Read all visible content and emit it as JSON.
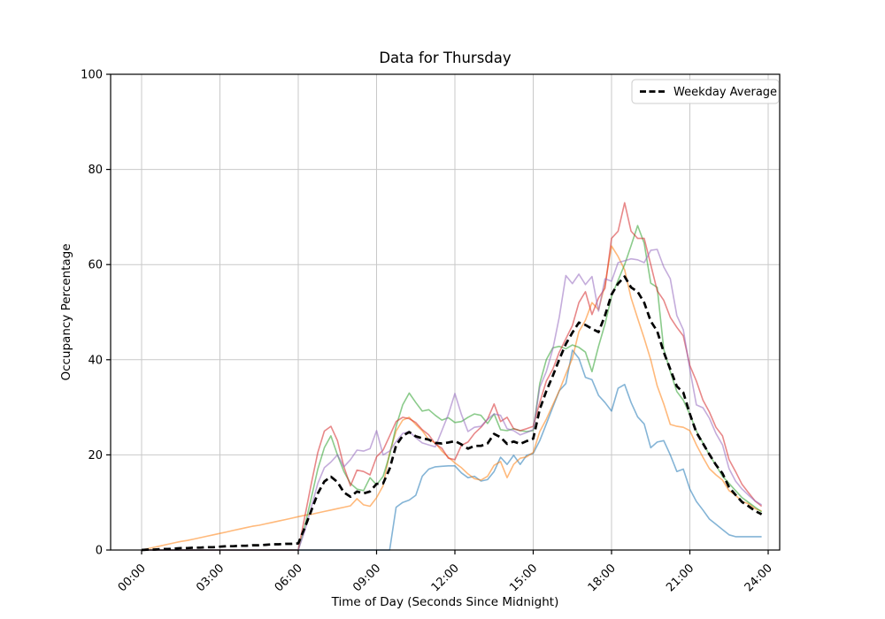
{
  "title": "Data for Thursday",
  "chart_data": {
    "type": "line",
    "title": "Data for Thursday",
    "xlabel": "Time of Day (Seconds Since Midnight)",
    "ylabel": "Occupancy Percentage",
    "xlim_hours": [
      0,
      24
    ],
    "ylim": [
      0,
      100
    ],
    "grid": true,
    "x_tick_hours": [
      0,
      3,
      6,
      9,
      12,
      15,
      18,
      21,
      24
    ],
    "x_tick_labels": [
      "00:00",
      "03:00",
      "06:00",
      "09:00",
      "12:00",
      "15:00",
      "18:00",
      "21:00",
      "24:00"
    ],
    "y_ticks": [
      0,
      20,
      40,
      60,
      80,
      100
    ],
    "x_start_hour": 0,
    "x_step_hours": 0.25,
    "legend": {
      "position": "upper right",
      "entries": [
        {
          "label": "Weekday Average",
          "style": "dashed",
          "color": "#000000"
        }
      ]
    },
    "series": [
      {
        "name": "weekday-1-blue",
        "color": "#1f77b4",
        "alpha": 0.55,
        "width": 1.6,
        "dashed": false,
        "values": [
          0,
          0,
          0,
          0,
          0,
          0,
          0,
          0,
          0,
          0,
          0,
          0,
          0,
          0,
          0,
          0,
          0,
          0,
          0,
          0,
          0,
          0,
          0,
          0,
          0,
          0,
          0,
          0,
          0,
          0,
          0,
          0,
          0,
          0,
          0,
          0,
          0,
          0,
          0,
          9,
          10,
          10.5,
          11.5,
          15.5,
          17,
          17.5,
          17.6,
          17.7,
          17.7,
          16.2,
          15.2,
          15.5,
          14.5,
          14.8,
          16.5,
          19.5,
          18,
          19.9,
          18,
          19.9,
          20.3,
          23,
          26.5,
          30,
          33.5,
          35,
          42,
          40.3,
          36.3,
          35.8,
          32.5,
          31,
          29.2,
          34,
          34.8,
          31,
          28,
          26.5,
          21.5,
          22.7,
          23,
          20,
          16.5,
          17,
          12.8,
          10.2,
          8.4,
          6.5,
          5.4,
          4.3,
          3.2,
          2.8,
          2.8,
          2.8,
          2.8,
          2.8
        ]
      },
      {
        "name": "weekday-2-orange",
        "color": "#ff7f0e",
        "alpha": 0.55,
        "width": 1.6,
        "dashed": false,
        "values": [
          0,
          0.3,
          0.6,
          0.9,
          1.2,
          1.5,
          1.8,
          2,
          2.3,
          2.6,
          2.9,
          3.2,
          3.5,
          3.8,
          4.1,
          4.4,
          4.7,
          5,
          5.2,
          5.5,
          5.8,
          6.1,
          6.4,
          6.7,
          7,
          7.3,
          7.5,
          7.8,
          8.1,
          8.4,
          8.7,
          9,
          9.3,
          10.8,
          9.5,
          9.2,
          11,
          13.5,
          20.5,
          25,
          27.3,
          27.9,
          26.4,
          25.1,
          23.2,
          22.5,
          20.8,
          19.5,
          18.3,
          17.3,
          16,
          15,
          14.7,
          15.5,
          17.8,
          18.6,
          15.2,
          18,
          19.3,
          19.6,
          20.5,
          24.9,
          27.5,
          30.5,
          33.5,
          37,
          40.3,
          45.9,
          48.3,
          52,
          50.5,
          55.8,
          63.9,
          61.7,
          58.9,
          53,
          48.7,
          44.5,
          40,
          34.5,
          30.7,
          26.4,
          26,
          25.8,
          25.1,
          22.1,
          19.5,
          17.1,
          15.8,
          14.7,
          12.5,
          11.5,
          10.2,
          9.7,
          8.7,
          8.2
        ]
      },
      {
        "name": "weekday-3-green",
        "color": "#2ca02c",
        "alpha": 0.55,
        "width": 1.6,
        "dashed": false,
        "values": [
          0,
          0,
          0,
          0,
          0,
          0,
          0,
          0,
          0,
          0,
          0,
          0,
          0,
          0,
          0,
          0,
          0,
          0,
          0,
          0,
          0,
          0,
          0,
          0,
          0,
          5,
          11,
          17,
          21.5,
          24,
          20,
          16.5,
          14,
          12.8,
          12.5,
          15.2,
          13.7,
          15.5,
          20,
          26,
          30.5,
          33,
          31,
          29.2,
          29.5,
          28.3,
          27.3,
          27.8,
          26.8,
          27,
          27.9,
          28.6,
          28.3,
          26.6,
          28.6,
          25.3,
          25.1,
          25.5,
          25.1,
          24.9,
          25.1,
          35,
          40,
          42.5,
          42.8,
          42.3,
          43.1,
          42.6,
          41.6,
          37.5,
          42.8,
          47.5,
          53.3,
          56.7,
          60,
          64,
          68.2,
          64.5,
          56.1,
          55.2,
          42.2,
          37.5,
          33.3,
          31.5,
          28.5,
          25,
          22.5,
          20,
          17.8,
          15.5,
          14,
          12.5,
          11,
          10,
          9,
          8
        ]
      },
      {
        "name": "weekday-4-red",
        "color": "#d62728",
        "alpha": 0.55,
        "width": 1.6,
        "dashed": false,
        "values": [
          0,
          0,
          0,
          0,
          0,
          0,
          0,
          0,
          0,
          0,
          0,
          0,
          0,
          0,
          0,
          0,
          0,
          0,
          0,
          0,
          0,
          0,
          0,
          0,
          0,
          7,
          14,
          20.5,
          25,
          26,
          23,
          17.5,
          13.5,
          16.8,
          16.5,
          15.8,
          19.6,
          21,
          24,
          27,
          27.9,
          27.6,
          26.8,
          25.3,
          24.2,
          22.3,
          21.4,
          19.3,
          19,
          22,
          22.7,
          24.5,
          25.8,
          27.5,
          30.7,
          27,
          27.9,
          25.5,
          25.1,
          25.5,
          26,
          31,
          35.5,
          38,
          41.6,
          44.4,
          47.2,
          52,
          54.3,
          49.5,
          53,
          55,
          65.5,
          67,
          73,
          67,
          65.5,
          65.5,
          60,
          54.5,
          52.5,
          48.9,
          46.8,
          45,
          38.8,
          35.5,
          31.5,
          29,
          25.8,
          24,
          19,
          16.5,
          13.8,
          12,
          10.3,
          9.2
        ]
      },
      {
        "name": "weekday-5-purple",
        "color": "#9467bd",
        "alpha": 0.55,
        "width": 1.6,
        "dashed": false,
        "values": [
          0,
          0,
          0,
          0,
          0,
          0,
          0,
          0,
          0,
          0,
          0,
          0,
          0,
          0,
          0,
          0,
          0,
          0,
          0,
          0,
          0,
          0,
          0,
          0,
          0,
          4,
          9,
          14,
          17.3,
          18.5,
          20,
          17.5,
          19,
          21,
          20.8,
          21.3,
          25.1,
          20,
          20.8,
          22.8,
          24.5,
          24.9,
          23.6,
          22.5,
          22.1,
          21.7,
          25.1,
          28.5,
          32.9,
          28.5,
          24.9,
          25.8,
          26,
          27.5,
          28.6,
          28.3,
          25.5,
          25.1,
          24.2,
          24.7,
          25.3,
          34.2,
          37.5,
          42.2,
          49,
          57.7,
          56,
          58,
          55.8,
          57.5,
          50.2,
          57,
          56.5,
          60.4,
          60.8,
          61.2,
          61,
          60.4,
          63,
          63.2,
          59.5,
          57,
          49.3,
          46.3,
          38,
          30.5,
          29.9,
          27.7,
          24.5,
          22.1,
          17.1,
          14.5,
          12.8,
          11.5,
          10.3,
          9.5
        ]
      },
      {
        "name": "Weekday Average",
        "color": "#000000",
        "alpha": 1,
        "width": 2.7,
        "dashed": true,
        "values": [
          0,
          0.1,
          0.1,
          0.2,
          0.2,
          0.3,
          0.4,
          0.4,
          0.5,
          0.5,
          0.6,
          0.6,
          0.7,
          0.8,
          0.8,
          0.9,
          0.9,
          1,
          1,
          1.1,
          1.2,
          1.2,
          1.3,
          1.3,
          1.4,
          4.7,
          8.3,
          11.9,
          14.4,
          15.4,
          14.3,
          12.1,
          11.2,
          12.3,
          11.9,
          12.3,
          13.9,
          14,
          17.1,
          22,
          24,
          24.8,
          23.9,
          23.5,
          23.2,
          22.5,
          22.4,
          22.6,
          22.9,
          22.2,
          21.3,
          21.9,
          21.9,
          22.4,
          24.4,
          23.7,
          22.3,
          22.8,
          22.3,
          22.9,
          23.4,
          29.6,
          33.4,
          36.6,
          40.1,
          43.3,
          45.7,
          47.8,
          47.3,
          46.5,
          45.8,
          49.3,
          53.7,
          56,
          57.5,
          55.2,
          54.3,
          52,
          48.1,
          46,
          41.6,
          38,
          34.4,
          33.1,
          28.6,
          24.7,
          22.4,
          20.1,
          17.9,
          16.1,
          13.2,
          11.6,
          10.1,
          9.2,
          8.2,
          7.5
        ]
      }
    ]
  }
}
